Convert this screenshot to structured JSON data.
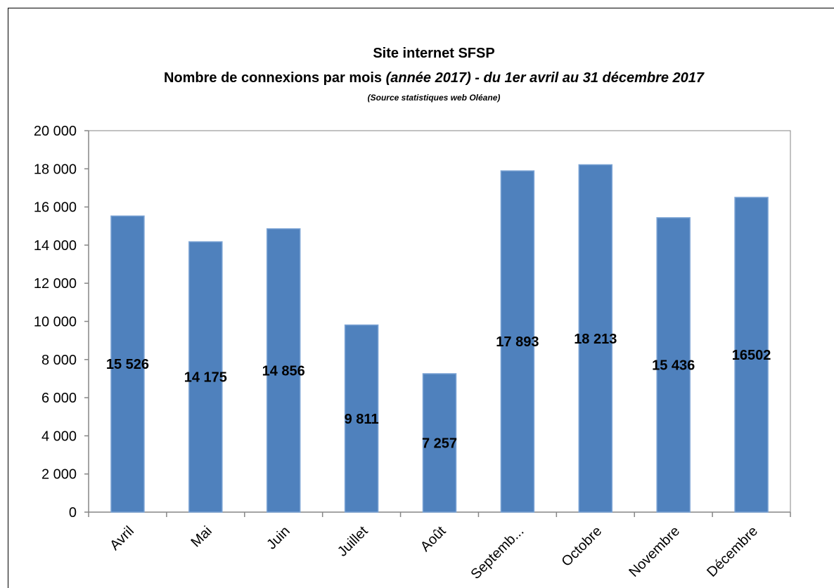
{
  "chart_data": {
    "type": "bar",
    "title": "Site internet SFSP",
    "subtitle_plain": "Nombre de connexions par mois ",
    "subtitle_italic": "(année 2017) - du 1er avril au 31 décembre 2017",
    "source": "(Source statistiques web Oléane)",
    "categories": [
      "Avril",
      "Mai",
      "Juin",
      "Juillet",
      "Août",
      "Septemb...",
      "Octobre",
      "Novembre",
      "Décembre"
    ],
    "values": [
      15526,
      14175,
      14856,
      9811,
      7257,
      17893,
      18213,
      15436,
      16502
    ],
    "data_labels": [
      "15 526",
      "14 175",
      "14 856",
      "9 811",
      "7 257",
      "17 893",
      "18 213",
      "15 436",
      "16502"
    ],
    "ylim": [
      0,
      20000
    ],
    "yticks": [
      0,
      2000,
      4000,
      6000,
      8000,
      10000,
      12000,
      14000,
      16000,
      18000,
      20000
    ],
    "ytick_labels": [
      "0",
      "2 000",
      "4 000",
      "6 000",
      "8 000",
      "10 000",
      "12 000",
      "14 000",
      "16 000",
      "18 000",
      "20 000"
    ],
    "grid": false,
    "legend": "none",
    "bar_color": "#4f81bd",
    "bar_edge_color": "#7ba3d4"
  }
}
